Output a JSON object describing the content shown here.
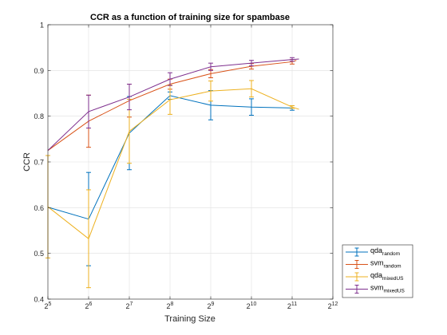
{
  "chart_data": {
    "type": "line",
    "title": "CCR as a function of training size for spambase",
    "xlabel": "Training Size",
    "ylabel": "CCR",
    "x_scale": "log2",
    "xlim_exponent": [
      5,
      12
    ],
    "ylim": [
      0.4,
      1.0
    ],
    "grid": true,
    "legend_position": "bottom-right outside",
    "x_tick_labels": [
      {
        "base": "2",
        "exp": "5"
      },
      {
        "base": "2",
        "exp": "6"
      },
      {
        "base": "2",
        "exp": "7"
      },
      {
        "base": "2",
        "exp": "8"
      },
      {
        "base": "2",
        "exp": "9"
      },
      {
        "base": "2",
        "exp": "10"
      },
      {
        "base": "2",
        "exp": "11"
      },
      {
        "base": "2",
        "exp": "12"
      }
    ],
    "y_tick_labels": [
      "0.4",
      "0.5",
      "0.6",
      "0.7",
      "0.8",
      "0.9",
      "1"
    ],
    "y_ticks": [
      0.4,
      0.5,
      0.6,
      0.7,
      0.8,
      0.9,
      1.0
    ],
    "series": [
      {
        "name_base": "qda",
        "name_sub": "random",
        "color": "#0072BD",
        "x": [
          32,
          64,
          128,
          256,
          512,
          1024,
          2048
        ],
        "y": [
          0.601,
          0.575,
          0.763,
          0.845,
          0.824,
          0.82,
          0.818
        ],
        "err": [
          0.0,
          0.102,
          0.08,
          0.008,
          0.032,
          0.018,
          0.005
        ]
      },
      {
        "name_base": "svm",
        "name_sub": "random",
        "color": "#D95319",
        "x": [
          32,
          64,
          128,
          256,
          512,
          1024,
          2048,
          2200
        ],
        "y": [
          0.725,
          0.789,
          0.834,
          0.87,
          0.893,
          0.909,
          0.919,
          0.922
        ],
        "err": [
          0.0,
          0.057,
          0.036,
          0.011,
          0.009,
          0.006,
          0.005,
          0.0
        ]
      },
      {
        "name_base": "qda",
        "name_sub": "mixedUS",
        "color": "#EDB120",
        "x": [
          32,
          64,
          128,
          256,
          512,
          1024,
          2048,
          2300
        ],
        "y": [
          0.602,
          0.532,
          0.767,
          0.836,
          0.855,
          0.86,
          0.82,
          0.815
        ],
        "err": [
          0.112,
          0.107,
          0.07,
          0.032,
          0.022,
          0.018,
          0.003,
          0.0
        ]
      },
      {
        "name_base": "svm",
        "name_sub": "mixedUS",
        "color": "#7E2F8E",
        "x": [
          32,
          64,
          128,
          256,
          512,
          1024,
          2048,
          2300
        ],
        "y": [
          0.725,
          0.81,
          0.842,
          0.881,
          0.908,
          0.916,
          0.924,
          0.925
        ],
        "err": [
          0.0,
          0.036,
          0.028,
          0.014,
          0.008,
          0.006,
          0.004,
          0.0
        ]
      }
    ]
  }
}
